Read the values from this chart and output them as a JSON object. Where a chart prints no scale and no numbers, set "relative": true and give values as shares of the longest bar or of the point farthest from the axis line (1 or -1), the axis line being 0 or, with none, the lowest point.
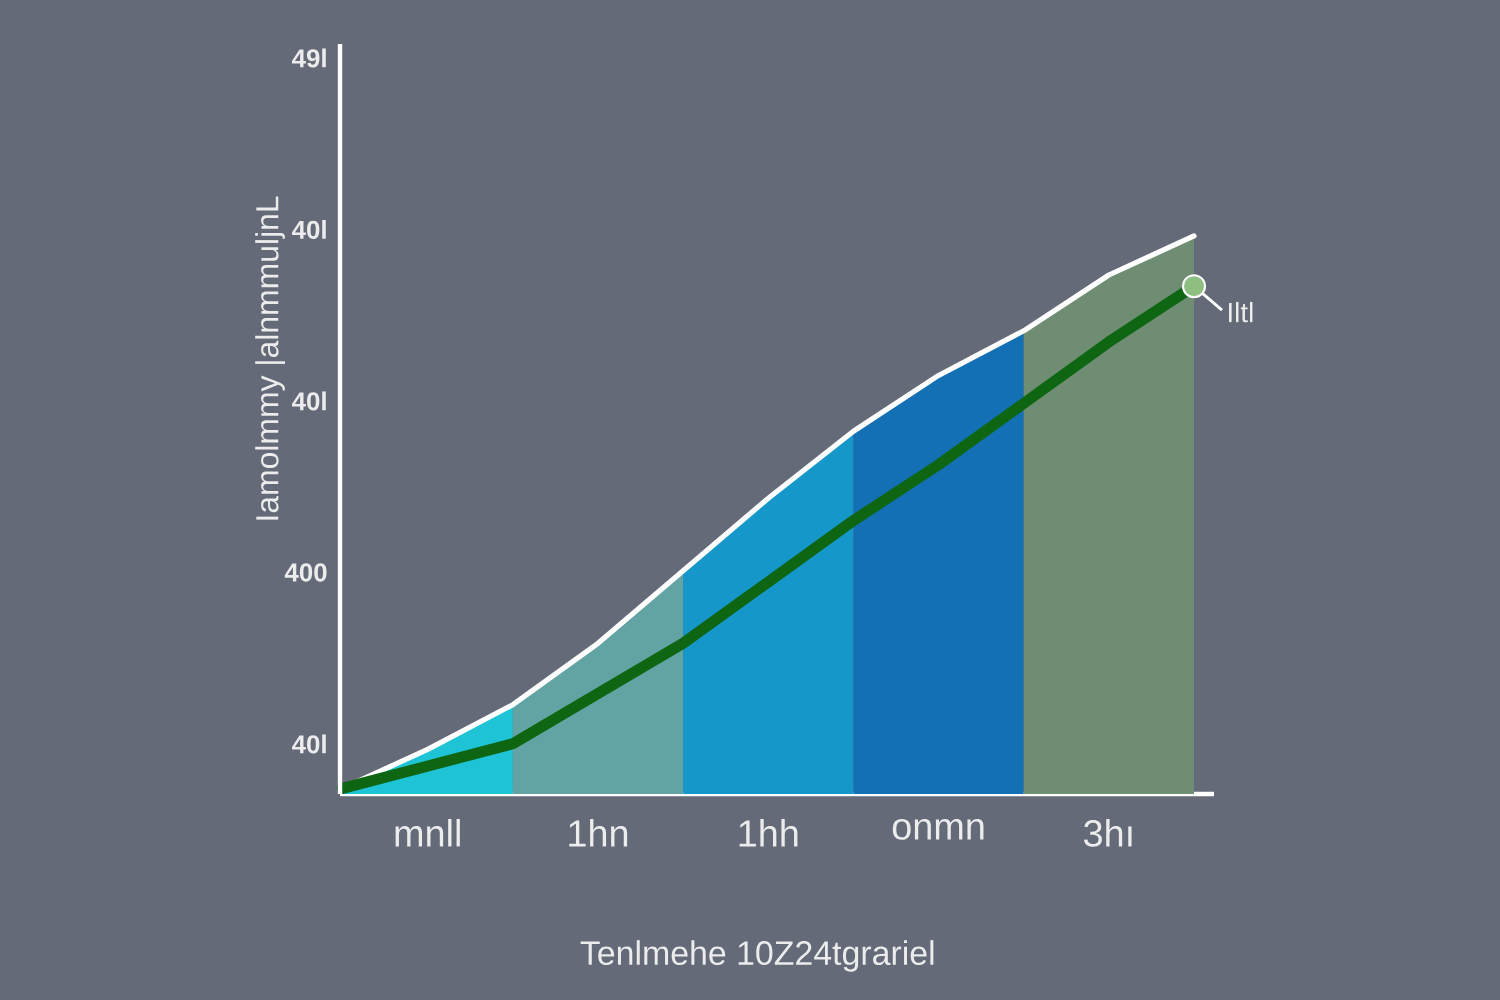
{
  "chart_data": {
    "type": "area",
    "relative": true,
    "xlabel": "Tenlmehe 10Z24tgrariel",
    "ylabel": "Iamolmmy |alnmmuljnL",
    "categories": [
      null,
      "mnll",
      null,
      "1hn",
      null,
      "1hh",
      null,
      "onmn",
      null,
      "3hı",
      null
    ],
    "series": [
      {
        "color": "#1fc3d6",
        "values": [
          0.01,
          0.08,
          0.16,
          null,
          null,
          null,
          null,
          null,
          null,
          null,
          null
        ]
      },
      {
        "color": "#62a3a3",
        "values": [
          null,
          null,
          0.16,
          0.27,
          0.4,
          null,
          null,
          null,
          null,
          null,
          null
        ]
      },
      {
        "color": "#1597c9",
        "values": [
          null,
          null,
          null,
          null,
          0.4,
          0.53,
          0.65,
          null,
          null,
          null,
          null
        ]
      },
      {
        "color": "#1470b5",
        "values": [
          null,
          null,
          null,
          null,
          null,
          null,
          0.65,
          0.75,
          0.83,
          null,
          null
        ]
      },
      {
        "color": "#6f8d72",
        "values": [
          null,
          null,
          null,
          null,
          null,
          null,
          null,
          null,
          0.83,
          0.93,
          1.0
        ]
      },
      {
        "type": "line",
        "color": "#ffffff",
        "values": [
          0.01,
          0.08,
          0.16,
          0.27,
          0.4,
          0.53,
          0.65,
          0.75,
          0.83,
          0.93,
          1.0
        ]
      },
      {
        "type": "line",
        "color": "#0e6612",
        "values": [
          0.01,
          0.05,
          0.09,
          0.18,
          0.27,
          0.38,
          0.49,
          0.59,
          0.7,
          0.81,
          0.91
        ]
      }
    ],
    "annotations": [
      "49l",
      "40l",
      "40l",
      "400",
      "40l",
      "Iltl"
    ]
  }
}
